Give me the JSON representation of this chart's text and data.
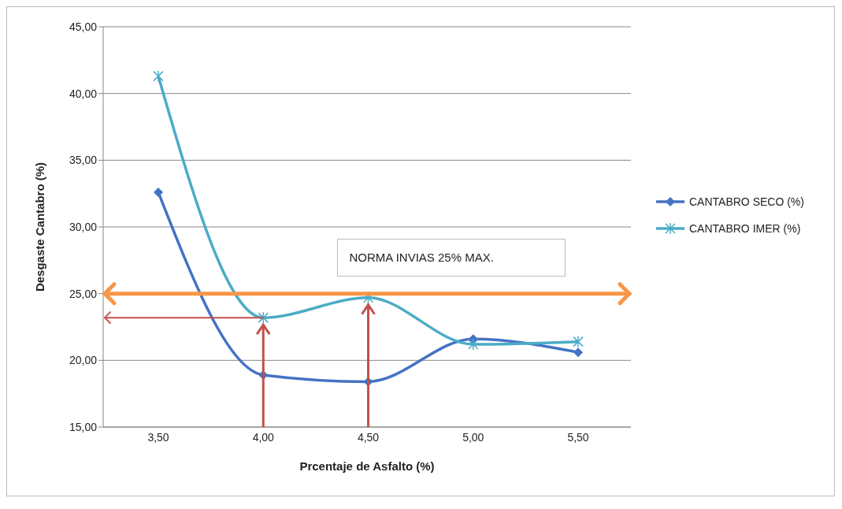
{
  "chart_data": {
    "type": "line",
    "xlabel": "Prcentaje de Asfalto  (%)",
    "ylabel": "Desgaste Cantabro  (%)",
    "categories": [
      "3,50",
      "4,00",
      "4,50",
      "5,00",
      "5,50"
    ],
    "series": [
      {
        "name": "CANTABRO SECO  (%)",
        "color": "#4472c4",
        "marker": "diamond",
        "values": [
          32.6,
          18.9,
          18.4,
          21.6,
          20.6
        ]
      },
      {
        "name": "CANTABRO IMER  (%)",
        "color": "#4bacc6",
        "marker": "cross",
        "values": [
          41.3,
          23.2,
          24.7,
          21.2,
          21.4
        ]
      }
    ],
    "ylim": [
      15,
      45
    ],
    "yticks": [
      {
        "value": 15,
        "label": "15,00"
      },
      {
        "value": 20,
        "label": "20,00"
      },
      {
        "value": 25,
        "label": "25,00"
      },
      {
        "value": 30,
        "label": "30,00"
      },
      {
        "value": 35,
        "label": "35,00"
      },
      {
        "value": 40,
        "label": "40,00"
      },
      {
        "value": 45,
        "label": "45,00"
      }
    ],
    "ref_lines": [
      {
        "axis": "y",
        "value": 25,
        "label": "NORMA INVIAS 25% MAX.",
        "color": "#f79646"
      },
      {
        "axis": "y",
        "value": 23.2,
        "color": "#c0504d"
      }
    ],
    "grid": "y",
    "legend": "right",
    "line_style": "solid"
  }
}
